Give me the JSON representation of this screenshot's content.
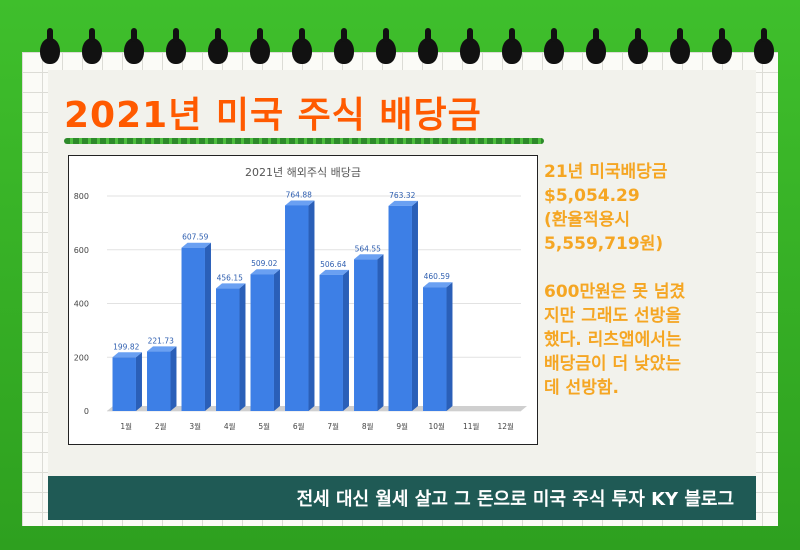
{
  "title": "2021년 미국 주식 배당금",
  "side": {
    "summary": "21년 미국배당금\n$5,054.29\n(환율적용시\n5,559,719원)",
    "note": "600만원은 못 넘겼\n지만 그래도 선방을\n했다. 리츠앱에서는\n배당금이 더 낮았는\n데 선방함."
  },
  "banner": "전세 대신 월세 살고 그 돈으로 미국 주식 투자 KY 블로그",
  "colors": {
    "frame": "#2ea01f",
    "title": "#ff5a00",
    "side_text": "#f5a623",
    "bar": "#3d7fe6",
    "banner": "#1f5a55"
  },
  "chart_data": {
    "type": "bar",
    "title": "2021년 해외주식 배당금",
    "categories": [
      "1월",
      "2월",
      "3월",
      "4월",
      "5월",
      "6월",
      "7월",
      "8월",
      "9월",
      "10월",
      "11월",
      "12월"
    ],
    "values": [
      199.82,
      221.73,
      607.59,
      456.15,
      509.02,
      764.88,
      506.64,
      564.55,
      763.32,
      460.59,
      null,
      null
    ],
    "value_labels": [
      "199.82",
      "221.73",
      "607.59",
      "456.15",
      "509.02",
      "764.88",
      "506.64",
      "564.55",
      "763.32",
      "460.59",
      "",
      ""
    ],
    "yticks": [
      0,
      200,
      400,
      600,
      800
    ],
    "ylim": [
      0,
      800
    ],
    "grid": true,
    "legend": "none"
  }
}
